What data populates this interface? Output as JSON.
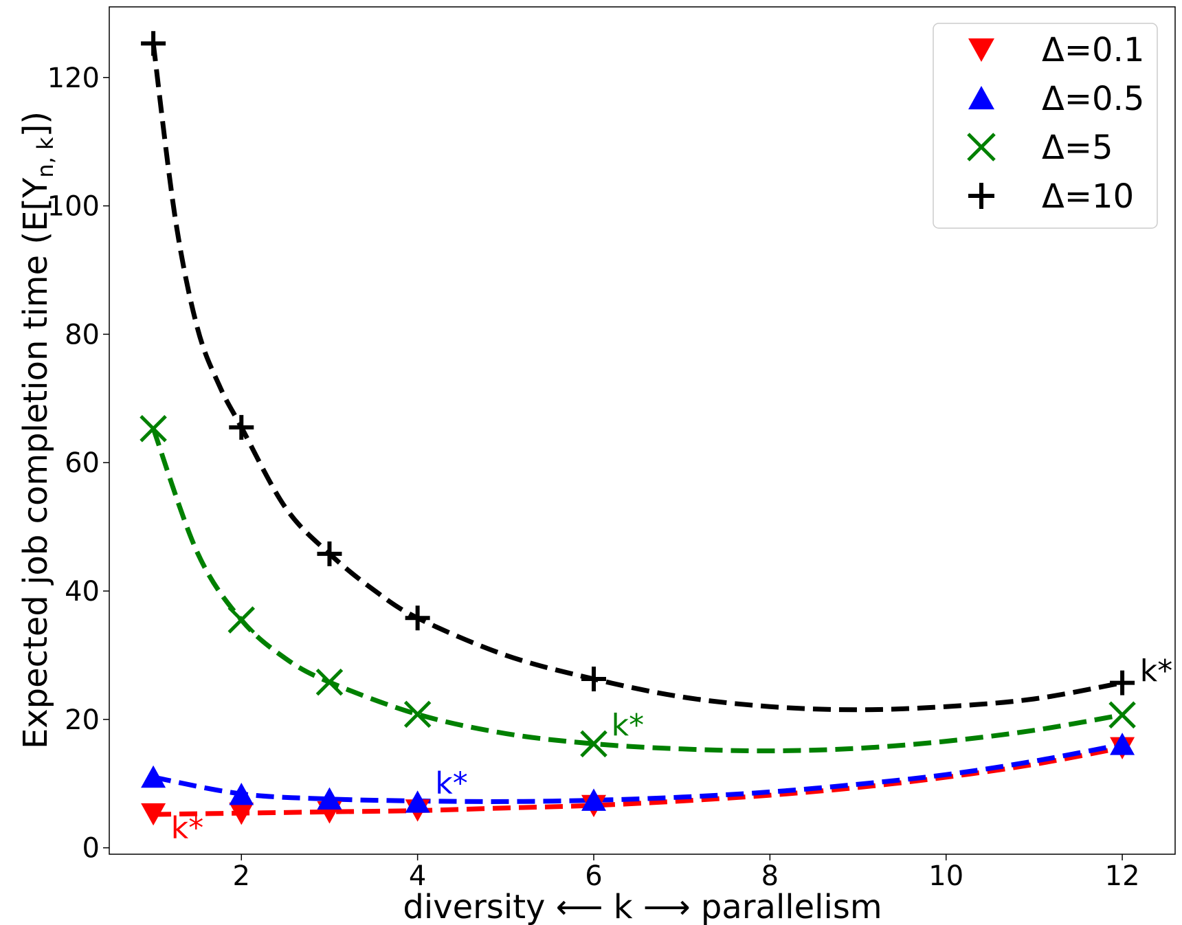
{
  "chart_data": {
    "type": "line",
    "title": "",
    "xlabel": "diversity ⟵ k ⟶ parallelism",
    "ylabel": "Expected job completion time (E[Y",
    "ylabel_sub": "n, k",
    "ylabel_end": "])",
    "xlim": [
      0.5,
      12.6
    ],
    "ylim": [
      -1,
      131
    ],
    "xticks": [
      2,
      4,
      6,
      8,
      10,
      12
    ],
    "yticks": [
      0,
      20,
      40,
      60,
      80,
      100,
      120
    ],
    "legend_position": "top-right",
    "series": [
      {
        "name": "Δ=0.1",
        "color": "#ff0000",
        "marker": "triangle-down",
        "x": [
          1,
          2,
          3,
          4,
          6,
          12
        ],
        "values": [
          5.3,
          5.4,
          5.6,
          5.9,
          6.6,
          15.6
        ],
        "curve": {
          "x": [
            1,
            2,
            3,
            4,
            5,
            6,
            7,
            8,
            9,
            10,
            11,
            12
          ],
          "y": [
            5.2,
            5.4,
            5.6,
            5.8,
            6.2,
            6.6,
            7.3,
            8.2,
            9.4,
            11.0,
            13.0,
            15.6
          ]
        },
        "kstar": {
          "label": "k*",
          "x": 1.2,
          "y": 1.5
        }
      },
      {
        "name": "Δ=0.5",
        "color": "#0000ff",
        "marker": "triangle-up",
        "x": [
          1,
          2,
          3,
          4,
          6,
          12
        ],
        "values": [
          11.0,
          8.3,
          7.6,
          7.1,
          7.4,
          16.1
        ],
        "curve": {
          "x": [
            1,
            2,
            3,
            4,
            5,
            6,
            7,
            8,
            9,
            10,
            11,
            12
          ],
          "y": [
            11.0,
            8.4,
            7.6,
            7.3,
            7.2,
            7.4,
            7.9,
            8.7,
            9.9,
            11.4,
            13.5,
            16.1
          ]
        },
        "kstar": {
          "label": "k*",
          "x": 4.2,
          "y": 8.5
        }
      },
      {
        "name": "Δ=5",
        "color": "#008000",
        "marker": "x",
        "x": [
          1,
          2,
          3,
          4,
          6,
          12
        ],
        "values": [
          65.3,
          35.5,
          25.8,
          20.8,
          16.2,
          20.7
        ],
        "curve": {
          "x": [
            1,
            1.5,
            2,
            2.5,
            3,
            4,
            5,
            6,
            7,
            8,
            9,
            10,
            11,
            12
          ],
          "y": [
            65.3,
            46.0,
            35.5,
            29.5,
            25.8,
            20.8,
            17.8,
            16.2,
            15.4,
            15.1,
            15.5,
            16.6,
            18.3,
            20.7
          ]
        },
        "kstar": {
          "label": "k*",
          "x": 6.2,
          "y": 17.5
        }
      },
      {
        "name": "Δ=10",
        "color": "#000000",
        "marker": "plus",
        "x": [
          1,
          2,
          3,
          4,
          6,
          12
        ],
        "values": [
          125.3,
          65.5,
          45.8,
          35.8,
          26.3,
          25.7
        ],
        "curve": {
          "x": [
            1,
            1.25,
            1.5,
            1.75,
            2,
            2.5,
            3,
            3.5,
            4,
            5,
            6,
            7,
            8,
            9,
            10,
            11,
            12
          ],
          "y": [
            125.3,
            98.0,
            81.0,
            72.0,
            65.5,
            53.0,
            45.8,
            40.2,
            35.8,
            30.0,
            26.3,
            23.5,
            22.0,
            21.5,
            22.0,
            23.2,
            25.7
          ]
        },
        "kstar": {
          "label": "k*",
          "x": 12.2,
          "y": 26.0
        }
      }
    ]
  }
}
